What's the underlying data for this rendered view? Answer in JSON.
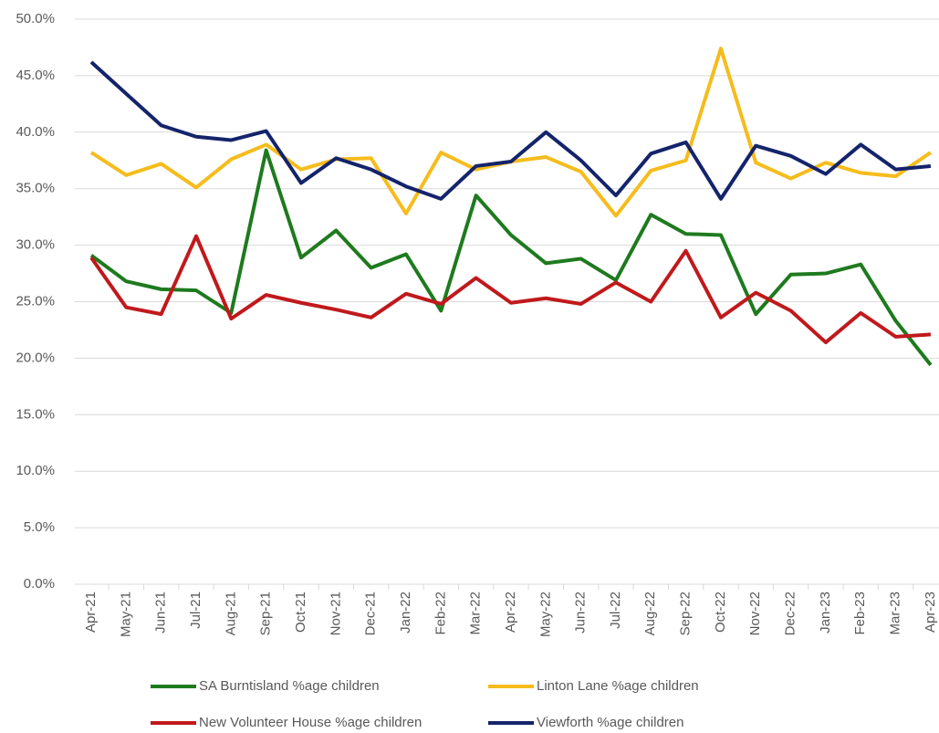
{
  "chart_data": {
    "type": "line",
    "categories": [
      "Apr-21",
      "May-21",
      "Jun-21",
      "Jul-21",
      "Aug-21",
      "Sep-21",
      "Oct-21",
      "Nov-21",
      "Dec-21",
      "Jan-22",
      "Feb-22",
      "Mar-22",
      "Apr-22",
      "May-22",
      "Jun-22",
      "Jul-22",
      "Aug-22",
      "Sep-22",
      "Oct-22",
      "Nov-22",
      "Dec-22",
      "Jan-23",
      "Feb-23",
      "Mar-23",
      "Apr-23"
    ],
    "series": [
      {
        "name": "SA Burntisland %age children",
        "color": "#1e7a1e",
        "values": [
          29.1,
          26.8,
          26.1,
          26.0,
          24.0,
          38.4,
          28.9,
          31.3,
          28.0,
          29.2,
          24.2,
          34.4,
          30.9,
          28.4,
          28.8,
          26.9,
          32.7,
          31.0,
          30.9,
          23.9,
          27.4,
          27.5,
          28.3,
          23.3,
          19.4
        ]
      },
      {
        "name": "Linton Lane %age children",
        "color": "#f5bc1c",
        "values": [
          38.2,
          36.2,
          37.2,
          35.1,
          37.6,
          38.9,
          36.7,
          37.6,
          37.7,
          32.8,
          38.2,
          36.7,
          37.4,
          37.8,
          36.5,
          32.6,
          36.6,
          37.5,
          47.4,
          37.3,
          35.9,
          37.3,
          36.4,
          36.1,
          38.2
        ]
      },
      {
        "name": "New Volunteer House %age children",
        "color": "#c0191c",
        "values": [
          28.9,
          24.5,
          23.9,
          30.8,
          23.5,
          25.6,
          24.9,
          24.3,
          23.6,
          25.7,
          24.8,
          27.1,
          24.9,
          25.3,
          24.8,
          26.7,
          25.0,
          29.5,
          23.6,
          25.8,
          24.2,
          21.4,
          24.0,
          21.9,
          22.1
        ]
      },
      {
        "name": "Viewforth %age children",
        "color": "#14246b",
        "values": [
          46.2,
          43.4,
          40.6,
          39.6,
          39.3,
          40.1,
          35.5,
          37.7,
          36.7,
          35.2,
          34.1,
          37.0,
          37.4,
          40.0,
          37.5,
          34.4,
          38.1,
          39.1,
          34.1,
          38.8,
          37.9,
          36.3,
          38.9,
          36.7,
          37.0
        ]
      }
    ],
    "ylim": [
      0,
      50
    ],
    "yticks": [
      {
        "value": 0,
        "label": "0.0%"
      },
      {
        "value": 5,
        "label": "5.0%"
      },
      {
        "value": 10,
        "label": "10.0%"
      },
      {
        "value": 15,
        "label": "15.0%"
      },
      {
        "value": 20,
        "label": "20.0%"
      },
      {
        "value": 25,
        "label": "25.0%"
      },
      {
        "value": 30,
        "label": "30.0%"
      },
      {
        "value": 35,
        "label": "35.0%"
      },
      {
        "value": 40,
        "label": "40.0%"
      },
      {
        "value": 45,
        "label": "45.0%"
      },
      {
        "value": 50,
        "label": "50.0%"
      }
    ],
    "grid": true
  }
}
